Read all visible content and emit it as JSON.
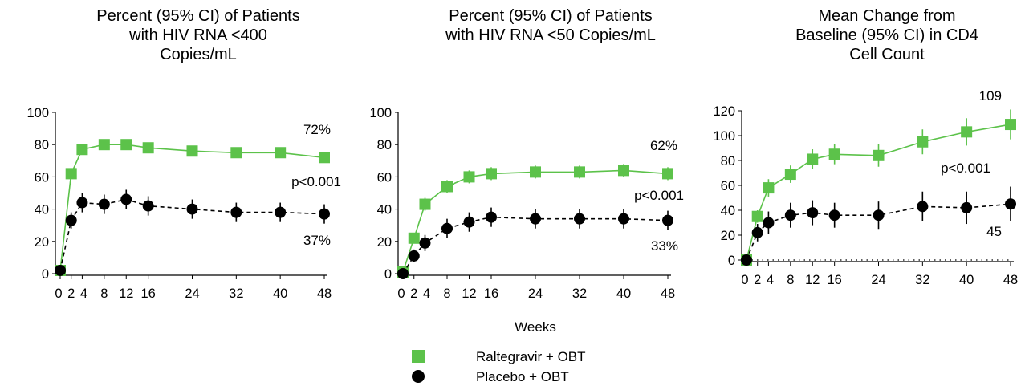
{
  "chart_data": [
    {
      "type": "line",
      "title": "Percent (95% CI) of Patients with HIV RNA <400 Copies/mL",
      "title_lines": [
        "Percent (95% CI) of Patients",
        "with HIV RNA <400",
        "Copies/mL"
      ],
      "ylim": [
        0,
        100
      ],
      "yticks": [
        0,
        20,
        40,
        60,
        80,
        100
      ],
      "xticks": [
        0,
        2,
        4,
        8,
        12,
        16,
        24,
        32,
        40,
        48
      ],
      "series": [
        {
          "name": "Raltegravir + OBT",
          "color": "#5cc24a",
          "marker": "square",
          "x": [
            0,
            2,
            4,
            8,
            12,
            16,
            24,
            32,
            40,
            48
          ],
          "y": [
            2,
            62,
            77,
            80,
            80,
            78,
            76,
            75,
            75,
            72
          ],
          "ci": [
            2,
            3,
            3,
            3,
            3,
            3,
            3,
            3,
            3,
            3
          ]
        },
        {
          "name": "Placebo + OBT",
          "color": "#000000",
          "marker": "circle",
          "x": [
            0,
            2,
            4,
            8,
            12,
            16,
            24,
            32,
            40,
            48
          ],
          "y": [
            2,
            33,
            44,
            43,
            46,
            42,
            40,
            38,
            38,
            37
          ],
          "ci": [
            2,
            5,
            6,
            6,
            6,
            6,
            6,
            6,
            6,
            6
          ]
        }
      ],
      "annotations": {
        "top": "72%",
        "pvalue": "p<0.001",
        "bottom": "37%"
      }
    },
    {
      "type": "line",
      "title": "Percent (95% CI) of Patients with HIV RNA <50 Copies/mL",
      "title_lines": [
        "Percent (95% CI) of Patients",
        "with HIV RNA <50 Copies/mL"
      ],
      "ylim": [
        0,
        100
      ],
      "yticks": [
        0,
        20,
        40,
        60,
        80,
        100
      ],
      "xticks": [
        0,
        2,
        4,
        8,
        12,
        16,
        24,
        32,
        40,
        48
      ],
      "series": [
        {
          "name": "Raltegravir + OBT",
          "color": "#5cc24a",
          "marker": "square",
          "x": [
            0,
            2,
            4,
            8,
            12,
            16,
            24,
            32,
            40,
            48
          ],
          "y": [
            1,
            22,
            43,
            54,
            60,
            62,
            63,
            63,
            64,
            62
          ],
          "ci": [
            1,
            3,
            4,
            4,
            4,
            4,
            4,
            4,
            4,
            4
          ]
        },
        {
          "name": "Placebo + OBT",
          "color": "#000000",
          "marker": "circle",
          "x": [
            0,
            2,
            4,
            8,
            12,
            16,
            24,
            32,
            40,
            48
          ],
          "y": [
            0,
            11,
            19,
            28,
            32,
            35,
            34,
            34,
            34,
            33
          ],
          "ci": [
            1,
            4,
            5,
            6,
            6,
            6,
            6,
            6,
            6,
            6
          ]
        }
      ],
      "annotations": {
        "top": "62%",
        "pvalue": "p<0.001",
        "bottom": "33%"
      }
    },
    {
      "type": "line",
      "title": "Mean Change from Baseline (95% CI) in CD4 Cell Count",
      "title_lines": [
        "Mean Change from",
        "Baseline (95% CI) in CD4",
        "Cell Count"
      ],
      "ylim": [
        0,
        120
      ],
      "yticks": [
        0,
        20,
        40,
        60,
        80,
        100,
        120
      ],
      "xticks": [
        0,
        2,
        4,
        8,
        12,
        16,
        24,
        32,
        40,
        48
      ],
      "baseline_dotted": true,
      "series": [
        {
          "name": "Raltegravir + OBT",
          "color": "#5cc24a",
          "marker": "square",
          "x": [
            0,
            2,
            4,
            8,
            12,
            16,
            24,
            32,
            40,
            48
          ],
          "y": [
            0,
            35,
            58,
            69,
            81,
            85,
            84,
            95,
            103,
            109
          ],
          "ci": [
            2,
            5,
            7,
            7,
            8,
            8,
            9,
            10,
            11,
            12
          ]
        },
        {
          "name": "Placebo + OBT",
          "color": "#000000",
          "marker": "circle",
          "x": [
            0,
            2,
            4,
            8,
            12,
            16,
            24,
            32,
            40,
            48
          ],
          "y": [
            0,
            22,
            30,
            36,
            38,
            36,
            36,
            43,
            42,
            45
          ],
          "ci": [
            2,
            7,
            9,
            10,
            10,
            10,
            11,
            12,
            13,
            14
          ]
        }
      ],
      "annotations": {
        "top": "109",
        "pvalue": "p<0.001",
        "bottom": "45"
      }
    }
  ],
  "xlabel": "Weeks",
  "legend": [
    {
      "label": "Raltegravir + OBT",
      "color": "#5cc24a",
      "marker": "square"
    },
    {
      "label": "Placebo + OBT",
      "color": "#000000",
      "marker": "circle"
    }
  ]
}
